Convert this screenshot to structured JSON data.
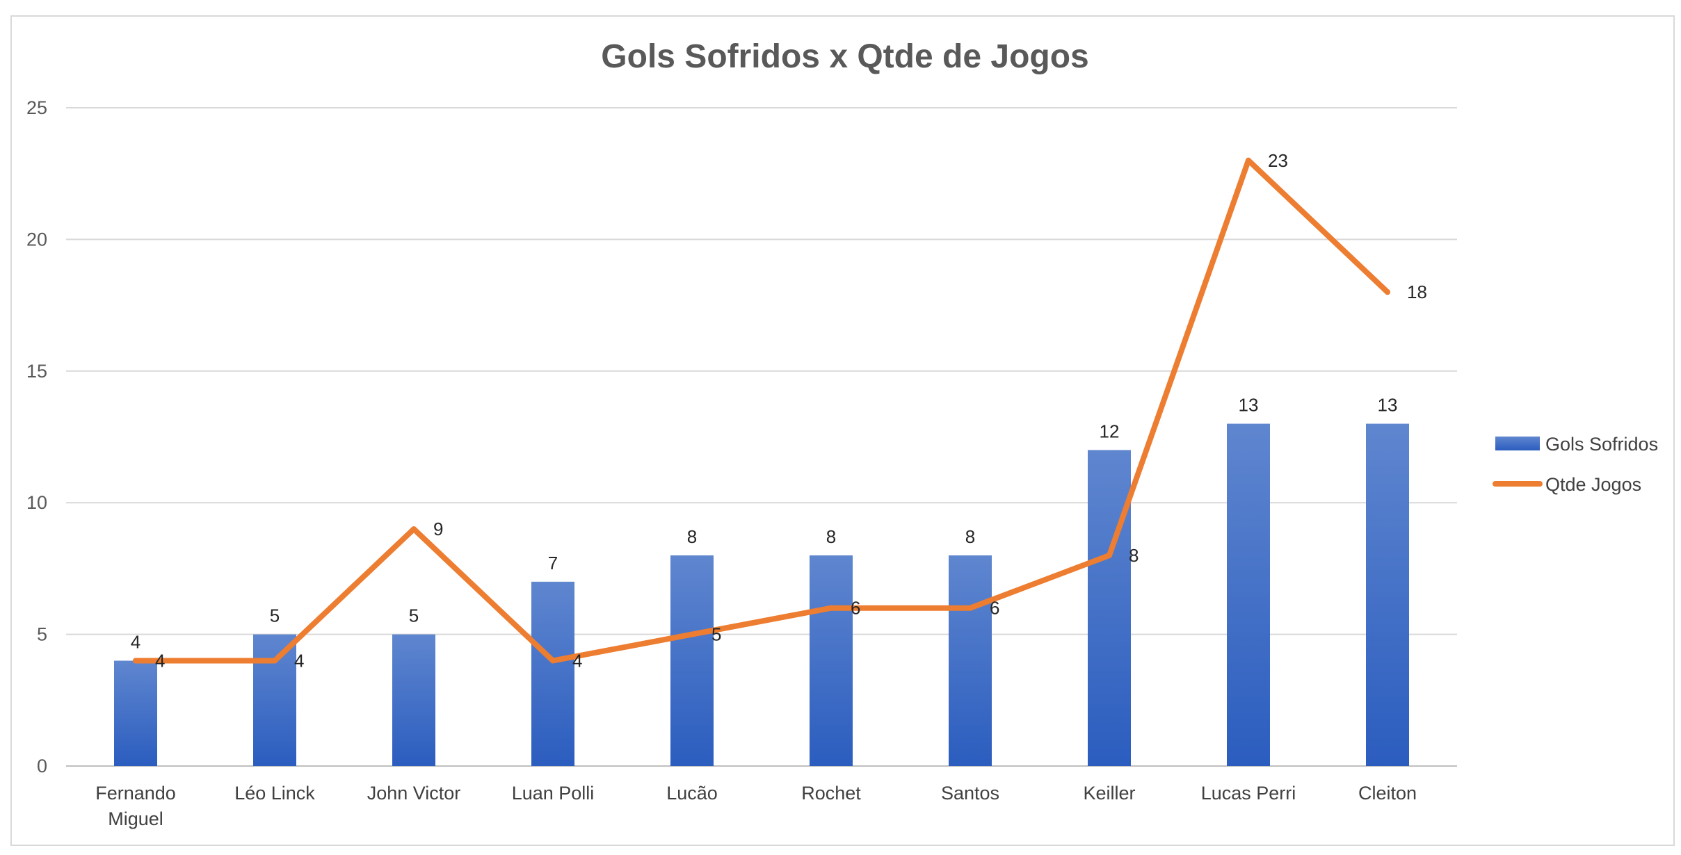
{
  "chart_data": {
    "type": "bar",
    "title": "Gols Sofridos x Qtde de Jogos",
    "xlabel": "",
    "ylabel": "",
    "ylim": [
      0,
      25
    ],
    "yticks": [
      0,
      5,
      10,
      15,
      20,
      25
    ],
    "grid": true,
    "legend_position": "right",
    "categories": [
      [
        "Fernando",
        "Miguel"
      ],
      [
        "Léo Linck"
      ],
      [
        "John Victor"
      ],
      [
        "Luan Polli"
      ],
      [
        "Lucão"
      ],
      [
        "Rochet"
      ],
      [
        "Santos"
      ],
      [
        "Keiller"
      ],
      [
        "Lucas Perri"
      ],
      [
        "Cleiton"
      ]
    ],
    "series": [
      {
        "name": "Gols Sofridos",
        "type": "bar",
        "color": "#4472c4",
        "values": [
          4,
          5,
          5,
          7,
          8,
          8,
          8,
          12,
          13,
          13
        ]
      },
      {
        "name": "Qtde Jogos",
        "type": "line",
        "color": "#ed7d31",
        "values": [
          4,
          4,
          9,
          4,
          5,
          6,
          6,
          8,
          23,
          18
        ]
      }
    ]
  }
}
